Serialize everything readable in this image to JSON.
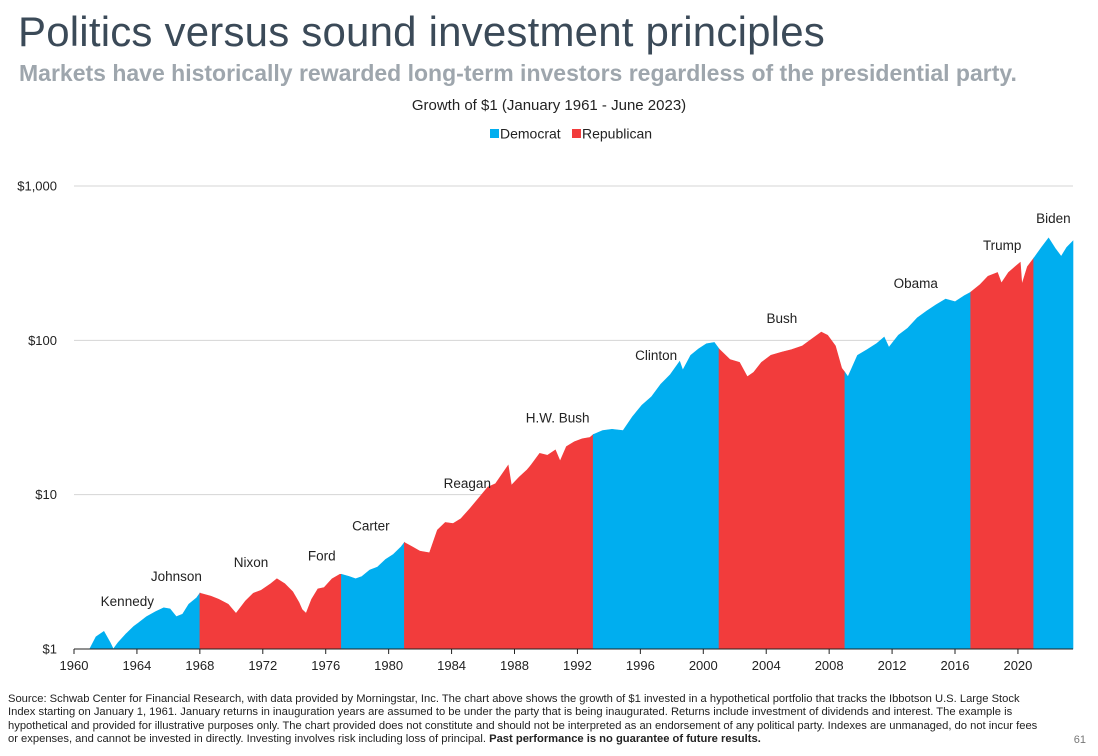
{
  "slide": {
    "title": "Politics versus sound investment principles",
    "subtitle": "Markets have historically rewarded long-term investors regardless of the presidential party.",
    "footnote": "Source: Schwab Center for Financial Research, with data provided by Morningstar, Inc. The chart above shows the growth of $1 invested in a hypothetical portfolio that tracks the Ibbotson U.S. Large Stock Index starting on January 1, 1961. January returns in inauguration years are assumed to be under the party that is being inaugurated. Returns include investment of dividends and interest. The example is hypothetical and provided for illustrative purposes only. The chart provided does not constitute and should not be interpreted as an endorsement of any political party. Indexes are unmanaged, do not incur fees or expenses, and cannot be invested in directly. Investing involves risk including loss of principal.",
    "footnote_bold": "Past performance is no guarantee of future results.",
    "page_number": "61"
  },
  "chart_data": {
    "type": "area",
    "title": "Growth of $1 (January 1961 - June 2023)",
    "y_scale": "log",
    "ylim": [
      1,
      1000
    ],
    "xlim": [
      1960,
      2023.5
    ],
    "y_ticks": [
      {
        "value": 1,
        "label": "$1"
      },
      {
        "value": 10,
        "label": "$10"
      },
      {
        "value": 100,
        "label": "$100"
      },
      {
        "value": 1000,
        "label": "$1,000"
      }
    ],
    "x_ticks": [
      1960,
      1964,
      1968,
      1972,
      1976,
      1980,
      1984,
      1988,
      1992,
      1996,
      2000,
      2004,
      2008,
      2012,
      2016,
      2020
    ],
    "grid": "horizontal",
    "legend_position": "top-center",
    "legend": [
      {
        "name": "Democrat",
        "color": "#00aeef"
      },
      {
        "name": "Republican",
        "color": "#f23c3c"
      }
    ],
    "colors": {
      "Democrat": "#00aeef",
      "Republican": "#f23c3c"
    },
    "terms": [
      {
        "label": "Kennedy",
        "party": "Democrat",
        "start": 1961,
        "end": 1964,
        "points": [
          [
            1961,
            1.0
          ],
          [
            1961.4,
            1.2
          ],
          [
            1961.9,
            1.3
          ],
          [
            1962.3,
            1.1
          ],
          [
            1962.5,
            1.0
          ],
          [
            1962.8,
            1.1
          ],
          [
            1963.3,
            1.25
          ],
          [
            1963.8,
            1.4
          ],
          [
            1964,
            1.45
          ]
        ]
      },
      {
        "label": "Johnson",
        "party": "Democrat",
        "start": 1964,
        "end": 1968,
        "points": [
          [
            1964,
            1.45
          ],
          [
            1964.6,
            1.62
          ],
          [
            1965.2,
            1.75
          ],
          [
            1965.7,
            1.85
          ],
          [
            1966.1,
            1.82
          ],
          [
            1966.5,
            1.62
          ],
          [
            1966.9,
            1.68
          ],
          [
            1967.3,
            1.95
          ],
          [
            1967.8,
            2.15
          ],
          [
            1968,
            2.3
          ]
        ]
      },
      {
        "label": "Nixon",
        "party": "Republican",
        "start": 1968,
        "end": 1974.5,
        "points": [
          [
            1968,
            2.3
          ],
          [
            1968.7,
            2.2
          ],
          [
            1969.2,
            2.1
          ],
          [
            1969.8,
            1.95
          ],
          [
            1970.3,
            1.7
          ],
          [
            1970.9,
            2.05
          ],
          [
            1971.4,
            2.3
          ],
          [
            1971.9,
            2.4
          ],
          [
            1972.5,
            2.65
          ],
          [
            1972.9,
            2.85
          ],
          [
            1973.4,
            2.65
          ],
          [
            1973.9,
            2.35
          ],
          [
            1974.3,
            2.0
          ],
          [
            1974.5,
            1.8
          ]
        ]
      },
      {
        "label": "Ford",
        "party": "Republican",
        "start": 1974.5,
        "end": 1977,
        "points": [
          [
            1974.5,
            1.8
          ],
          [
            1974.75,
            1.7
          ],
          [
            1975.1,
            2.1
          ],
          [
            1975.5,
            2.45
          ],
          [
            1975.9,
            2.5
          ],
          [
            1976.4,
            2.85
          ],
          [
            1976.9,
            3.05
          ],
          [
            1977,
            3.05
          ]
        ]
      },
      {
        "label": "Carter",
        "party": "Democrat",
        "start": 1977,
        "end": 1981,
        "points": [
          [
            1977,
            3.05
          ],
          [
            1977.5,
            2.95
          ],
          [
            1977.9,
            2.85
          ],
          [
            1978.3,
            2.95
          ],
          [
            1978.8,
            3.25
          ],
          [
            1979.3,
            3.4
          ],
          [
            1979.8,
            3.8
          ],
          [
            1980.3,
            4.1
          ],
          [
            1980.8,
            4.6
          ],
          [
            1981,
            4.9
          ]
        ]
      },
      {
        "label": "Reagan",
        "party": "Republican",
        "start": 1981,
        "end": 1989,
        "points": [
          [
            1981,
            4.9
          ],
          [
            1981.5,
            4.6
          ],
          [
            1982,
            4.3
          ],
          [
            1982.6,
            4.2
          ],
          [
            1983.1,
            5.9
          ],
          [
            1983.6,
            6.6
          ],
          [
            1984.1,
            6.5
          ],
          [
            1984.6,
            7.0
          ],
          [
            1985.2,
            8.2
          ],
          [
            1985.8,
            9.7
          ],
          [
            1986.3,
            11.2
          ],
          [
            1986.8,
            11.8
          ],
          [
            1987.6,
            15.5
          ],
          [
            1987.8,
            11.5
          ],
          [
            1988.3,
            13.0
          ],
          [
            1988.8,
            14.5
          ],
          [
            1989,
            15.3
          ]
        ]
      },
      {
        "label": "H.W. Bush",
        "party": "Republican",
        "start": 1989,
        "end": 1993,
        "points": [
          [
            1989,
            15.3
          ],
          [
            1989.6,
            18.5
          ],
          [
            1990.1,
            18.0
          ],
          [
            1990.6,
            19.5
          ],
          [
            1990.9,
            16.5
          ],
          [
            1991.3,
            20.5
          ],
          [
            1991.8,
            22.0
          ],
          [
            1992.3,
            23.0
          ],
          [
            1992.8,
            23.5
          ],
          [
            1993,
            24.5
          ]
        ]
      },
      {
        "label": "Clinton",
        "party": "Democrat",
        "start": 1993,
        "end": 2001,
        "points": [
          [
            1993,
            24.5
          ],
          [
            1993.6,
            26.0
          ],
          [
            1994.2,
            26.5
          ],
          [
            1994.9,
            26.0
          ],
          [
            1995.5,
            32.0
          ],
          [
            1996.1,
            38.0
          ],
          [
            1996.7,
            43.0
          ],
          [
            1997.3,
            52.0
          ],
          [
            1997.9,
            60.0
          ],
          [
            1998.5,
            73.0
          ],
          [
            1998.7,
            64.0
          ],
          [
            1999.2,
            80.0
          ],
          [
            1999.7,
            88.0
          ],
          [
            2000.2,
            95.0
          ],
          [
            2000.7,
            97.0
          ],
          [
            2001,
            88.0
          ]
        ]
      },
      {
        "label": "Bush",
        "party": "Republican",
        "start": 2001,
        "end": 2009,
        "points": [
          [
            2001,
            88.0
          ],
          [
            2001.7,
            75.0
          ],
          [
            2002.3,
            72.0
          ],
          [
            2002.8,
            58.0
          ],
          [
            2003.2,
            62.0
          ],
          [
            2003.7,
            72.0
          ],
          [
            2004.3,
            80.0
          ],
          [
            2005,
            84.0
          ],
          [
            2005.6,
            87.0
          ],
          [
            2006.3,
            92.0
          ],
          [
            2006.9,
            102.0
          ],
          [
            2007.5,
            113.0
          ],
          [
            2007.9,
            108.0
          ],
          [
            2008.4,
            92.0
          ],
          [
            2008.8,
            66.0
          ],
          [
            2009,
            62.0
          ]
        ]
      },
      {
        "label": "Obama",
        "party": "Democrat",
        "start": 2009,
        "end": 2017,
        "points": [
          [
            2009,
            62.0
          ],
          [
            2009.2,
            58.0
          ],
          [
            2009.8,
            80.0
          ],
          [
            2010.4,
            87.0
          ],
          [
            2011,
            95.0
          ],
          [
            2011.5,
            105.0
          ],
          [
            2011.8,
            90.0
          ],
          [
            2012.4,
            108.0
          ],
          [
            2013,
            120.0
          ],
          [
            2013.6,
            140.0
          ],
          [
            2014.2,
            155.0
          ],
          [
            2014.8,
            170.0
          ],
          [
            2015.4,
            185.0
          ],
          [
            2016,
            178.0
          ],
          [
            2016.6,
            195.0
          ],
          [
            2017,
            205.0
          ]
        ]
      },
      {
        "label": "Trump",
        "party": "Republican",
        "start": 2017,
        "end": 2021,
        "points": [
          [
            2017,
            205.0
          ],
          [
            2017.6,
            230.0
          ],
          [
            2018.1,
            260.0
          ],
          [
            2018.7,
            275.0
          ],
          [
            2018.95,
            235.0
          ],
          [
            2019.4,
            275.0
          ],
          [
            2019.9,
            305.0
          ],
          [
            2020.15,
            320.0
          ],
          [
            2020.25,
            230.0
          ],
          [
            2020.6,
            300.0
          ],
          [
            2021,
            340.0
          ]
        ]
      },
      {
        "label": "Biden",
        "party": "Democrat",
        "start": 2021,
        "end": 2023.5,
        "points": [
          [
            2021,
            340.0
          ],
          [
            2021.5,
            400.0
          ],
          [
            2021.95,
            460.0
          ],
          [
            2022.4,
            390.0
          ],
          [
            2022.75,
            350.0
          ],
          [
            2023.1,
            400.0
          ],
          [
            2023.5,
            440.0
          ]
        ]
      }
    ]
  }
}
